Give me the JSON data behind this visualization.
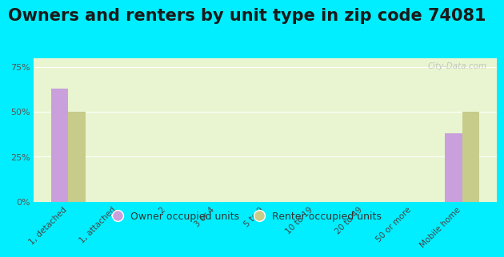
{
  "title": "Owners and renters by unit type in zip code 74081",
  "categories": [
    "1, detached",
    "1, attached",
    "2",
    "3 or 4",
    "5 to 9",
    "10 to 19",
    "20 to 49",
    "50 or more",
    "Mobile home"
  ],
  "owner_values": [
    63,
    0,
    0,
    0,
    0,
    0,
    0,
    0,
    38
  ],
  "renter_values": [
    50,
    0,
    0,
    0,
    0,
    0,
    0,
    0,
    50
  ],
  "owner_color": "#c9a0dc",
  "renter_color": "#c8cc8a",
  "background_outer": "#00eeff",
  "background_plot_top": "#e8f5d0",
  "background_plot_bottom": "#f5fbea",
  "yticks": [
    0,
    25,
    50,
    75
  ],
  "ylim": [
    0,
    80
  ],
  "bar_width": 0.35,
  "title_fontsize": 15,
  "legend_labels": [
    "Owner occupied units",
    "Renter occupied units"
  ],
  "watermark": "City-Data.com"
}
